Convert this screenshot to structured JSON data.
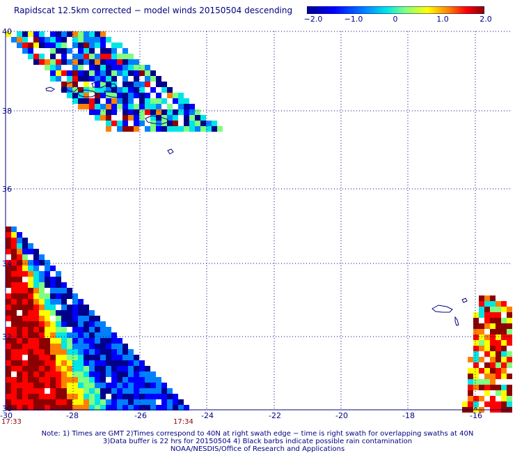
{
  "title": "Rapidscat 12.5km corrected − model winds 20150504 descending",
  "colorbar": {
    "labels": [
      "−2.0",
      "−1.0",
      "0",
      "1.0",
      "2.0"
    ],
    "values": [
      -2.0,
      -1.0,
      0,
      1.0,
      2.0
    ],
    "min": -2.0,
    "max": 2.0,
    "colors": [
      "#00008b",
      "#0000ff",
      "#0080ff",
      "#00e5e5",
      "#80ff80",
      "#ffff00",
      "#ff8000",
      "#ff0000",
      "#8b0000"
    ]
  },
  "map": {
    "lon_ticks": [
      "-30",
      "-28",
      "-26",
      "-24",
      "-22",
      "-20",
      "-18",
      "-16"
    ],
    "lat_ticks": [
      "40",
      "38",
      "36",
      "34",
      "32",
      "30"
    ],
    "lon_range": [
      -30,
      -15
    ],
    "lat_range": [
      30,
      40
    ],
    "grid": "dotted",
    "coastline_color": "#000080"
  },
  "swath_times": {
    "left_start": "17:33",
    "left_end": "17:34"
  },
  "notes": [
    "Note: 1) Times are GMT 2)Times correspond to 40N at right swath edge − time is right swath for overlapping swaths at 40N",
    "3)Data buffer is 22 hrs for 20150504 4) Black barbs indicate possible rain contamination",
    "NOAA/NESDIS/Office of Research and Applications"
  ]
}
